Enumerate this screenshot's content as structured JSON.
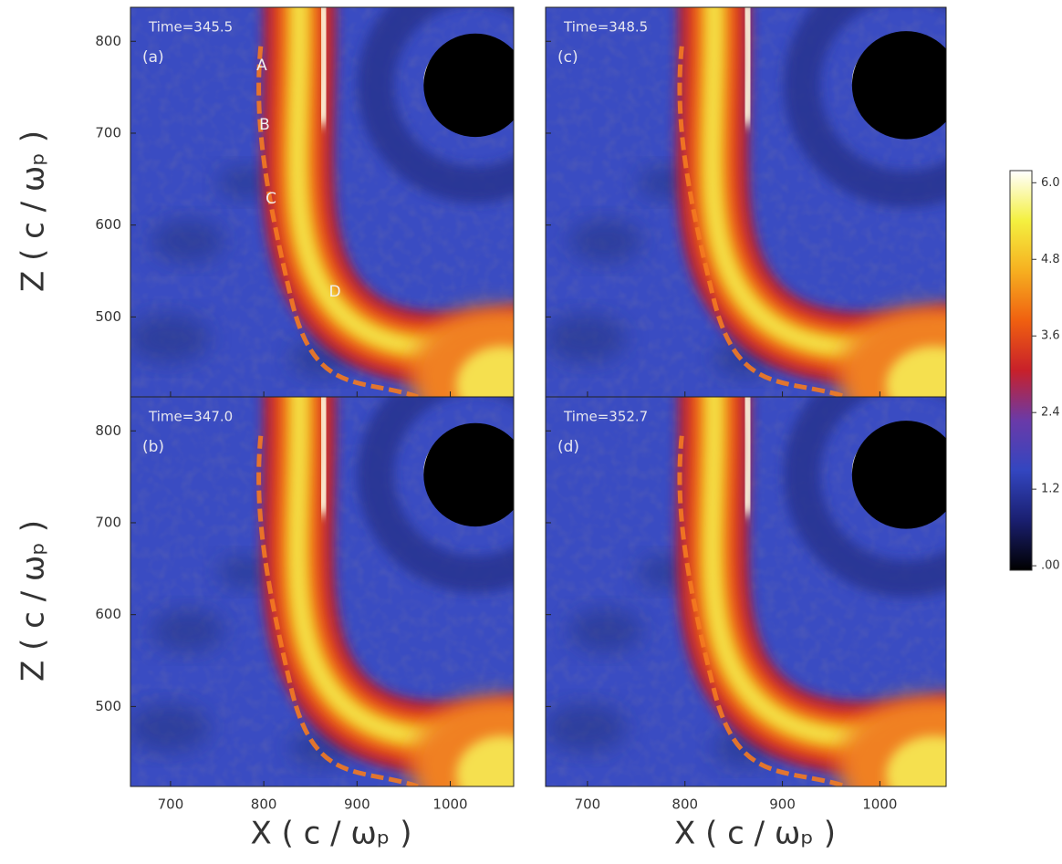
{
  "chart_data": {
    "type": "heatmap",
    "panels": [
      {
        "title": "Time=345.5",
        "label": "(a)"
      },
      {
        "title": "Time=347.0",
        "label": "(b)"
      },
      {
        "title": "Time=348.5",
        "label": "(c)"
      },
      {
        "title": "Time=352.7",
        "label": "(d)"
      }
    ],
    "annotations": [
      "A",
      "B",
      "C",
      "D"
    ],
    "xlabel": "X ( c / ωₚ )",
    "ylabel": "Z ( c / ωₚ )",
    "xlim": [
      657,
      1068
    ],
    "ylim": [
      413,
      837
    ],
    "xticks": [
      700,
      800,
      900,
      1000
    ],
    "yticks": [
      500,
      600,
      700,
      800
    ],
    "colorbar": {
      "clim": [
        -0.07,
        6.19
      ],
      "ticks": [
        {
          "value": 0,
          "label": ".00"
        },
        1.2,
        2.4,
        3.6,
        4.8,
        {
          "value": 6,
          "label": "6.0"
        }
      ],
      "colormap": [
        "#000000",
        "#1a1f70",
        "#3346c0",
        "#6a3aa8",
        "#c8202a",
        "#f06010",
        "#f6b020",
        "#f4f040",
        "#ffffff"
      ]
    }
  }
}
